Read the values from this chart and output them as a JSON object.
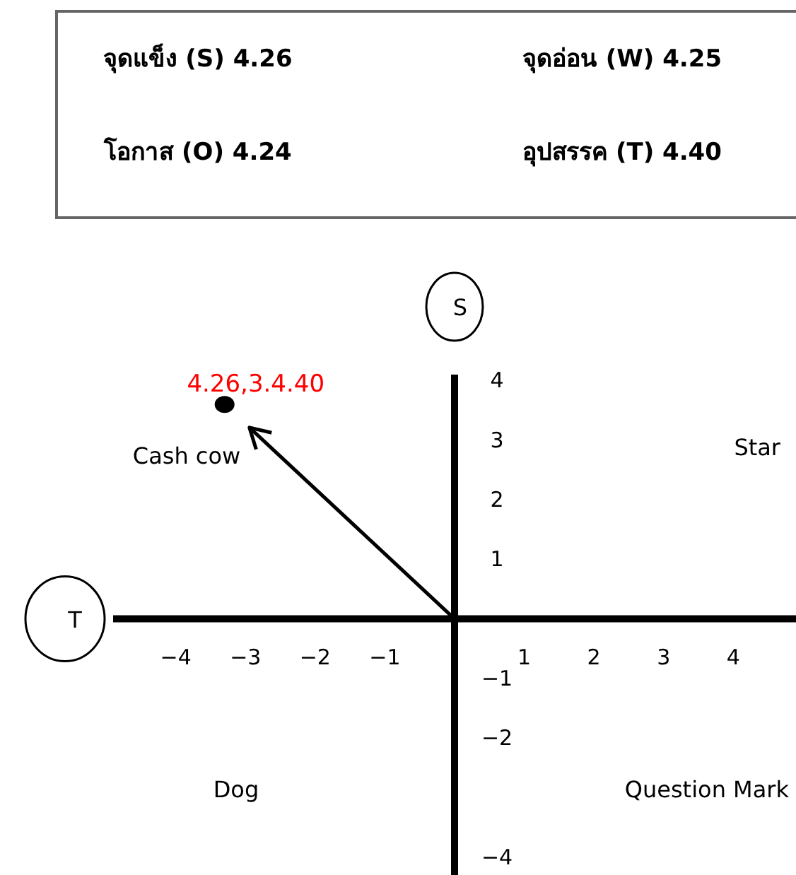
{
  "chart_data": {
    "type": "scatter",
    "annotations": [
      "จุดแข็ง (S) 4.26",
      "จุดอ่อน (W) 4.25",
      "โอกาส (O) 4.24",
      "อุปสรรค (T) 4.40",
      "S",
      "T",
      "Cash cow",
      "Star",
      "Dog",
      "Question Mark"
    ],
    "series": [
      {
        "color": "#000000",
        "x": [
          -3.3
        ],
        "values": [
          3.6
        ],
        "value_labels": [
          "4.26,3.4.40"
        ]
      }
    ],
    "xlim": [
      -4.9,
      4.9
    ],
    "ylim": [
      -4.3,
      4.1
    ],
    "xticks": [
      -4,
      -3,
      -2,
      -1,
      1,
      2,
      3,
      4
    ],
    "yticks": [
      4,
      3,
      2,
      1,
      -1,
      -2,
      -4
    ],
    "marker": "circle"
  }
}
